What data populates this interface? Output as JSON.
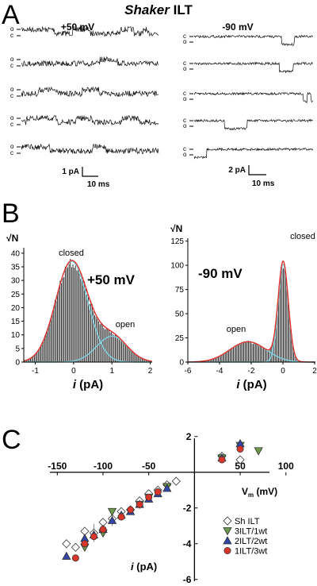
{
  "figure": {
    "panel_a": {
      "letter": "A",
      "title_italic": "Shaker",
      "title_rest": " ILT",
      "left_voltage": "+50 mV",
      "right_voltage": "-90 mV",
      "state_open": "o",
      "state_closed": "c",
      "left_scale_current": "1 pA",
      "left_scale_time": "10 ms",
      "right_scale_current": "2 pA",
      "right_scale_time": "10 ms"
    },
    "panel_b": {
      "letter": "B"
    },
    "panel_c": {
      "letter": "C"
    }
  },
  "chart_data": [
    {
      "type": "bar",
      "panel": "B-left",
      "annotation": "+50 mV",
      "ylabel": "√N",
      "xlabel": "i (pA)",
      "xlim": [
        -1.3,
        2.05
      ],
      "ylim": [
        0,
        42
      ],
      "xticks": [
        -1,
        0,
        1,
        2
      ],
      "yticks": [
        0,
        5,
        10,
        15,
        20,
        25,
        30,
        35,
        40
      ],
      "peak_labels": [
        "closed",
        "open"
      ],
      "components": [
        {
          "name": "closed",
          "mean": -0.05,
          "sd": 0.42,
          "amp": 37
        },
        {
          "name": "open",
          "mean": 1.0,
          "sd": 0.4,
          "amp": 9.5
        }
      ]
    },
    {
      "type": "bar",
      "panel": "B-right",
      "annotation": "-90 mV",
      "ylabel": "√N",
      "xlabel": "i (pA)",
      "xlim": [
        -6,
        2.05
      ],
      "ylim": [
        0,
        128
      ],
      "xticks": [
        -6,
        -4,
        -2,
        0,
        2
      ],
      "yticks": [
        0,
        25,
        50,
        75,
        100,
        125
      ],
      "peak_labels": [
        "open",
        "closed"
      ],
      "components": [
        {
          "name": "open",
          "mean": -2.2,
          "sd": 1.15,
          "amp": 21
        },
        {
          "name": "closed",
          "mean": 0.02,
          "sd": 0.32,
          "amp": 101
        }
      ]
    },
    {
      "type": "scatter",
      "panel": "C",
      "xlabel": "Vm (mV)",
      "ylabel": "i (pA)",
      "xlim": [
        -165,
        95
      ],
      "ylim": [
        -6.1,
        1.9
      ],
      "xticks": [
        -150,
        -100,
        -50,
        50,
        100
      ],
      "yticks": [
        -6,
        -4,
        -2,
        2
      ],
      "series": [
        {
          "name": "Sh ILT",
          "marker": "diamond",
          "color": "#ffffff",
          "points": [
            [
              -140,
              -4.0
            ],
            [
              -130,
              -4.2
            ],
            [
              -120,
              -3.3
            ],
            [
              -110,
              -3.4
            ],
            [
              -100,
              -2.8
            ],
            [
              -90,
              -2.6
            ],
            [
              -80,
              -2.2
            ],
            [
              -70,
              -2.1
            ],
            [
              -60,
              -1.6
            ],
            [
              -50,
              -1.2
            ],
            [
              -40,
              -1.0
            ],
            [
              -30,
              -0.7
            ],
            [
              -20,
              -0.5
            ],
            [
              30,
              0.9
            ],
            [
              50,
              0.7
            ]
          ]
        },
        {
          "name": "3ILT/1wt",
          "marker": "triangle-down",
          "color": "#6d9a4a",
          "points": [
            [
              -120,
              -4.2
            ],
            [
              -100,
              -3.4
            ],
            [
              -90,
              -2.2
            ],
            [
              -60,
              -1.8
            ],
            [
              -50,
              -1.4
            ],
            [
              -30,
              -0.8
            ],
            [
              30,
              0.8
            ],
            [
              50,
              1.5
            ],
            [
              70,
              1.2
            ]
          ]
        },
        {
          "name": "2ILT/2wt",
          "marker": "triangle-up",
          "color": "#3346a8",
          "points": [
            [
              -140,
              -4.7
            ],
            [
              -120,
              -3.7
            ],
            [
              -110,
              -3.5
            ],
            [
              -100,
              -3.2
            ],
            [
              -90,
              -2.7
            ],
            [
              -80,
              -2.4
            ],
            [
              -70,
              -2.2
            ],
            [
              -60,
              -1.8
            ],
            [
              -50,
              -1.5
            ],
            [
              -40,
              -1.2
            ],
            [
              -30,
              -0.9
            ],
            [
              30,
              0.8
            ],
            [
              50,
              1.6
            ]
          ]
        },
        {
          "name": "1ILT/3wt",
          "marker": "circle",
          "color": "#d9362b",
          "points": [
            [
              -130,
              -4.8
            ],
            [
              -120,
              -4.0
            ],
            [
              -110,
              -3.6
            ],
            [
              -100,
              -3.2
            ],
            [
              -80,
              -2.5
            ],
            [
              -70,
              -2.1
            ],
            [
              -60,
              -1.8
            ],
            [
              -50,
              -1.4
            ],
            [
              -40,
              -1.1
            ],
            [
              30,
              0.7
            ],
            [
              50,
              1.3
            ]
          ]
        }
      ],
      "error_bars": [
        {
          "series": "Sh ILT",
          "x": -110,
          "y": -3.4,
          "err": 0.5
        },
        {
          "series": "Sh ILT",
          "x": -90,
          "y": -2.6,
          "err": 0.4
        }
      ]
    }
  ]
}
